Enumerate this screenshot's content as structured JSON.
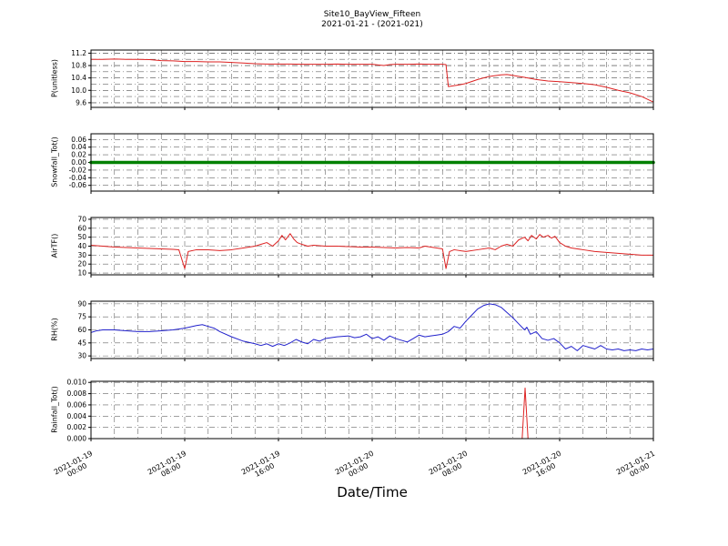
{
  "figure": {
    "title": "Site10_BayView_Fifteen",
    "subtitle": "2021-01-21 - (2021-021)",
    "xlabel": "Date/Time"
  },
  "chart_data": {
    "type": "line",
    "title": "Site10_BayView_Fifteen",
    "subtitle": "2021-01-21 - (2021-021)",
    "xlabel": "Date/Time",
    "x_unit": "hours since 2021-01-19 00:00",
    "x_range": [
      0,
      48
    ],
    "x_minor_step_hours": 2,
    "grid": "dash-dot, both axes",
    "x_ticks": [
      {
        "h": 0,
        "label": "2021-01-19 00:00"
      },
      {
        "h": 8,
        "label": "2021-01-19 08:00"
      },
      {
        "h": 16,
        "label": "2021-01-19 16:00"
      },
      {
        "h": 24,
        "label": "2021-01-20 00:00"
      },
      {
        "h": 32,
        "label": "2021-01-20 08:00"
      },
      {
        "h": 40,
        "label": "2021-01-20 16:00"
      },
      {
        "h": 48,
        "label": "2021-01-21 00:00"
      }
    ],
    "panels": [
      {
        "ylabel": "P(unitless)",
        "color": "#dd2222",
        "line_width": 1,
        "ylim": [
          9.45,
          11.3
        ],
        "y_minor_step": 0.2,
        "yticks": [
          9.6,
          10.0,
          10.4,
          10.8,
          11.2
        ],
        "ytick_labels": [
          "9.6",
          "10.0",
          "10.4",
          "10.8",
          "11.2"
        ],
        "points": [
          [
            0,
            11.0
          ],
          [
            1,
            11.0
          ],
          [
            2,
            11.01
          ],
          [
            3,
            11.0
          ],
          [
            4,
            11.0
          ],
          [
            5,
            10.99
          ],
          [
            6,
            10.96
          ],
          [
            7,
            10.95
          ],
          [
            8,
            10.93
          ],
          [
            9,
            10.93
          ],
          [
            10,
            10.92
          ],
          [
            11,
            10.92
          ],
          [
            12,
            10.9
          ],
          [
            13,
            10.88
          ],
          [
            14,
            10.86
          ],
          [
            15,
            10.85
          ],
          [
            16,
            10.85
          ],
          [
            17,
            10.85
          ],
          [
            18,
            10.84
          ],
          [
            19,
            10.84
          ],
          [
            20,
            10.84
          ],
          [
            21,
            10.85
          ],
          [
            22,
            10.84
          ],
          [
            23,
            10.84
          ],
          [
            24,
            10.84
          ],
          [
            24.5,
            10.82
          ],
          [
            25,
            10.8
          ],
          [
            25.5,
            10.83
          ],
          [
            26,
            10.84
          ],
          [
            27,
            10.84
          ],
          [
            28,
            10.85
          ],
          [
            29,
            10.84
          ],
          [
            30,
            10.84
          ],
          [
            30.3,
            10.83
          ],
          [
            30.5,
            10.12
          ],
          [
            31,
            10.15
          ],
          [
            31.5,
            10.18
          ],
          [
            32,
            10.22
          ],
          [
            33,
            10.35
          ],
          [
            34,
            10.45
          ],
          [
            35,
            10.5
          ],
          [
            35.5,
            10.51
          ],
          [
            36,
            10.48
          ],
          [
            37,
            10.42
          ],
          [
            38,
            10.35
          ],
          [
            39,
            10.3
          ],
          [
            40,
            10.28
          ],
          [
            41,
            10.25
          ],
          [
            42,
            10.22
          ],
          [
            43,
            10.18
          ],
          [
            44,
            10.1
          ],
          [
            45,
            10.0
          ],
          [
            46,
            9.92
          ],
          [
            47,
            9.8
          ],
          [
            48,
            9.62
          ]
        ]
      },
      {
        "ylabel": "Snowfall_Tot()",
        "color": "#008000",
        "line_width": 3.5,
        "ylim": [
          -0.075,
          0.075
        ],
        "y_minor_step": null,
        "yticks": [
          -0.06,
          -0.04,
          -0.02,
          0.0,
          0.02,
          0.04,
          0.06
        ],
        "ytick_labels": [
          "-0.06",
          "-0.04",
          "-0.02",
          "0.00",
          "0.02",
          "0.04",
          "0.06"
        ],
        "points": [
          [
            0,
            0
          ],
          [
            48,
            0
          ]
        ]
      },
      {
        "ylabel": "AirTF()",
        "color": "#dd2222",
        "line_width": 1,
        "ylim": [
          8,
          72
        ],
        "y_minor_step": null,
        "yticks": [
          10,
          20,
          30,
          40,
          50,
          60,
          70
        ],
        "ytick_labels": [
          "10",
          "20",
          "30",
          "40",
          "50",
          "60",
          "70"
        ],
        "points": [
          [
            0,
            41
          ],
          [
            1,
            40
          ],
          [
            2,
            39
          ],
          [
            3,
            38.5
          ],
          [
            4,
            38
          ],
          [
            5,
            37.5
          ],
          [
            6,
            37
          ],
          [
            7,
            36.5
          ],
          [
            7.5,
            36
          ],
          [
            8,
            15
          ],
          [
            8.3,
            34
          ],
          [
            9,
            36
          ],
          [
            10,
            36
          ],
          [
            11,
            35
          ],
          [
            12,
            36
          ],
          [
            13,
            38
          ],
          [
            14,
            40
          ],
          [
            14.5,
            42
          ],
          [
            15,
            44
          ],
          [
            15.5,
            40
          ],
          [
            16,
            46
          ],
          [
            16.3,
            52
          ],
          [
            16.6,
            47
          ],
          [
            17,
            54
          ],
          [
            17.3,
            48
          ],
          [
            17.6,
            44
          ],
          [
            18,
            42
          ],
          [
            18.5,
            40
          ],
          [
            19,
            41
          ],
          [
            20,
            40
          ],
          [
            21,
            40
          ],
          [
            22,
            39.5
          ],
          [
            23,
            39
          ],
          [
            24,
            39
          ],
          [
            25,
            38.5
          ],
          [
            26,
            38
          ],
          [
            27,
            38.5
          ],
          [
            28,
            38
          ],
          [
            28.5,
            40
          ],
          [
            29,
            39
          ],
          [
            29.5,
            38
          ],
          [
            30,
            37
          ],
          [
            30.3,
            15
          ],
          [
            30.6,
            34
          ],
          [
            31,
            36
          ],
          [
            32,
            34
          ],
          [
            33,
            36
          ],
          [
            34,
            38
          ],
          [
            34.5,
            36
          ],
          [
            35,
            40
          ],
          [
            35.5,
            42
          ],
          [
            36,
            40
          ],
          [
            36.5,
            47
          ],
          [
            37,
            50
          ],
          [
            37.3,
            46
          ],
          [
            37.6,
            52
          ],
          [
            38,
            48
          ],
          [
            38.3,
            53
          ],
          [
            38.6,
            50
          ],
          [
            39,
            52
          ],
          [
            39.3,
            49
          ],
          [
            39.6,
            51
          ],
          [
            40,
            44
          ],
          [
            40.5,
            40
          ],
          [
            41,
            38
          ],
          [
            42,
            36
          ],
          [
            43,
            34
          ],
          [
            44,
            33
          ],
          [
            45,
            32
          ],
          [
            46,
            31
          ],
          [
            47,
            30
          ],
          [
            48,
            30
          ]
        ]
      },
      {
        "ylabel": "RH(%)",
        "color": "#2222cc",
        "line_width": 1,
        "ylim": [
          27,
          93
        ],
        "y_minor_step": null,
        "yticks": [
          30,
          45,
          60,
          75,
          90
        ],
        "ytick_labels": [
          "30",
          "45",
          "60",
          "75",
          "90"
        ],
        "points": [
          [
            0,
            57
          ],
          [
            0.5,
            59
          ],
          [
            1,
            60
          ],
          [
            2,
            60
          ],
          [
            3,
            59
          ],
          [
            4,
            58
          ],
          [
            5,
            58
          ],
          [
            6,
            59
          ],
          [
            7,
            60
          ],
          [
            8,
            62
          ],
          [
            9,
            65
          ],
          [
            9.5,
            66
          ],
          [
            10,
            64
          ],
          [
            10.5,
            62
          ],
          [
            11,
            58
          ],
          [
            12,
            52
          ],
          [
            13,
            47
          ],
          [
            14,
            44
          ],
          [
            14.5,
            42
          ],
          [
            15,
            44
          ],
          [
            15.5,
            41
          ],
          [
            16,
            44
          ],
          [
            16.5,
            42
          ],
          [
            17,
            45
          ],
          [
            17.5,
            49
          ],
          [
            18,
            46
          ],
          [
            18.5,
            44
          ],
          [
            19,
            49
          ],
          [
            19.5,
            47
          ],
          [
            20,
            50
          ],
          [
            21,
            52
          ],
          [
            22,
            53
          ],
          [
            22.5,
            51
          ],
          [
            23,
            52
          ],
          [
            23.5,
            55
          ],
          [
            24,
            50
          ],
          [
            24.5,
            52
          ],
          [
            25,
            48
          ],
          [
            25.5,
            53
          ],
          [
            26,
            50
          ],
          [
            26.5,
            48
          ],
          [
            27,
            46
          ],
          [
            27.5,
            50
          ],
          [
            28,
            54
          ],
          [
            28.5,
            52
          ],
          [
            29,
            53
          ],
          [
            29.5,
            54
          ],
          [
            30,
            55
          ],
          [
            30.5,
            58
          ],
          [
            31,
            64
          ],
          [
            31.5,
            62
          ],
          [
            32,
            70
          ],
          [
            32.5,
            77
          ],
          [
            33,
            84
          ],
          [
            33.5,
            88
          ],
          [
            34,
            90
          ],
          [
            34.5,
            89
          ],
          [
            35,
            86
          ],
          [
            35.5,
            80
          ],
          [
            36,
            74
          ],
          [
            36.5,
            67
          ],
          [
            37,
            60
          ],
          [
            37.2,
            63
          ],
          [
            37.5,
            55
          ],
          [
            38,
            58
          ],
          [
            38.5,
            50
          ],
          [
            39,
            48
          ],
          [
            39.5,
            50
          ],
          [
            40,
            45
          ],
          [
            40.5,
            38
          ],
          [
            41,
            41
          ],
          [
            41.5,
            36
          ],
          [
            42,
            42
          ],
          [
            42.5,
            40
          ],
          [
            43,
            38
          ],
          [
            43.5,
            42
          ],
          [
            44,
            38
          ],
          [
            44.5,
            37
          ],
          [
            45,
            38
          ],
          [
            45.5,
            36
          ],
          [
            46,
            37
          ],
          [
            46.5,
            36
          ],
          [
            47,
            38
          ],
          [
            47.5,
            37
          ],
          [
            48,
            38
          ]
        ]
      },
      {
        "ylabel": "Rainfall_Tot()",
        "color": "#dd2222",
        "line_width": 1,
        "ylim": [
          0,
          0.0102
        ],
        "y_minor_step": null,
        "yticks": [
          0.0,
          0.002,
          0.004,
          0.006,
          0.008,
          0.01
        ],
        "ytick_labels": [
          "0.000",
          "0.002",
          "0.004",
          "0.006",
          "0.008",
          "0.010"
        ],
        "points": [
          [
            0,
            0
          ],
          [
            36.8,
            0
          ],
          [
            37.05,
            0.009
          ],
          [
            37.3,
            0
          ],
          [
            48,
            0
          ]
        ]
      }
    ]
  }
}
